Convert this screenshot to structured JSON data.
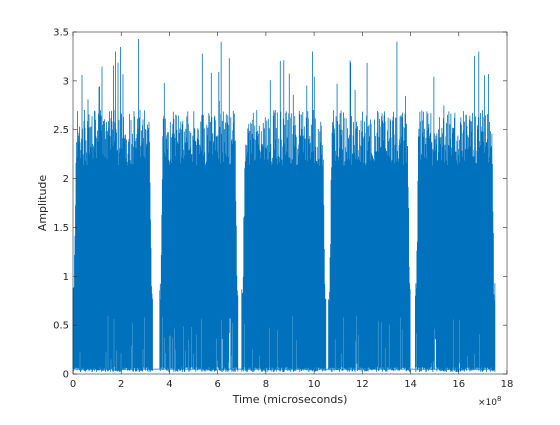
{
  "chart_data": {
    "type": "line",
    "title": "",
    "xlabel": "Time (microseconds)",
    "ylabel": "Amplitude",
    "x_exponent_label": "×10",
    "x_exponent_power": "8",
    "xlim": [
      0,
      18
    ],
    "ylim": [
      0,
      3.5
    ],
    "x_scale_factor": 100000000,
    "xticks": [
      0,
      2,
      4,
      6,
      8,
      10,
      12,
      14,
      16,
      18
    ],
    "yticks": [
      0,
      0.5,
      1,
      1.5,
      2,
      2.5,
      3,
      3.5
    ],
    "xtick_labels": [
      "0",
      "2",
      "4",
      "6",
      "8",
      "10",
      "12",
      "14",
      "16",
      "18"
    ],
    "ytick_labels": [
      "0",
      "0.5",
      "1",
      "1.5",
      "2",
      "2.5",
      "3",
      "3.5"
    ],
    "grid": false,
    "color": "#0072BD",
    "bursts": [
      {
        "start": 0.0,
        "end": 3.3,
        "typical_peak": 2.6,
        "max_peak": 3.43
      },
      {
        "start": 3.6,
        "end": 6.85,
        "typical_peak": 2.6,
        "max_peak": 3.4
      },
      {
        "start": 7.0,
        "end": 10.5,
        "typical_peak": 2.6,
        "max_peak": 3.3
      },
      {
        "start": 10.6,
        "end": 14.0,
        "typical_peak": 2.6,
        "max_peak": 3.4
      },
      {
        "start": 14.2,
        "end": 17.5,
        "typical_peak": 2.6,
        "max_peak": 3.3
      }
    ],
    "noise_floor": 0.05
  }
}
